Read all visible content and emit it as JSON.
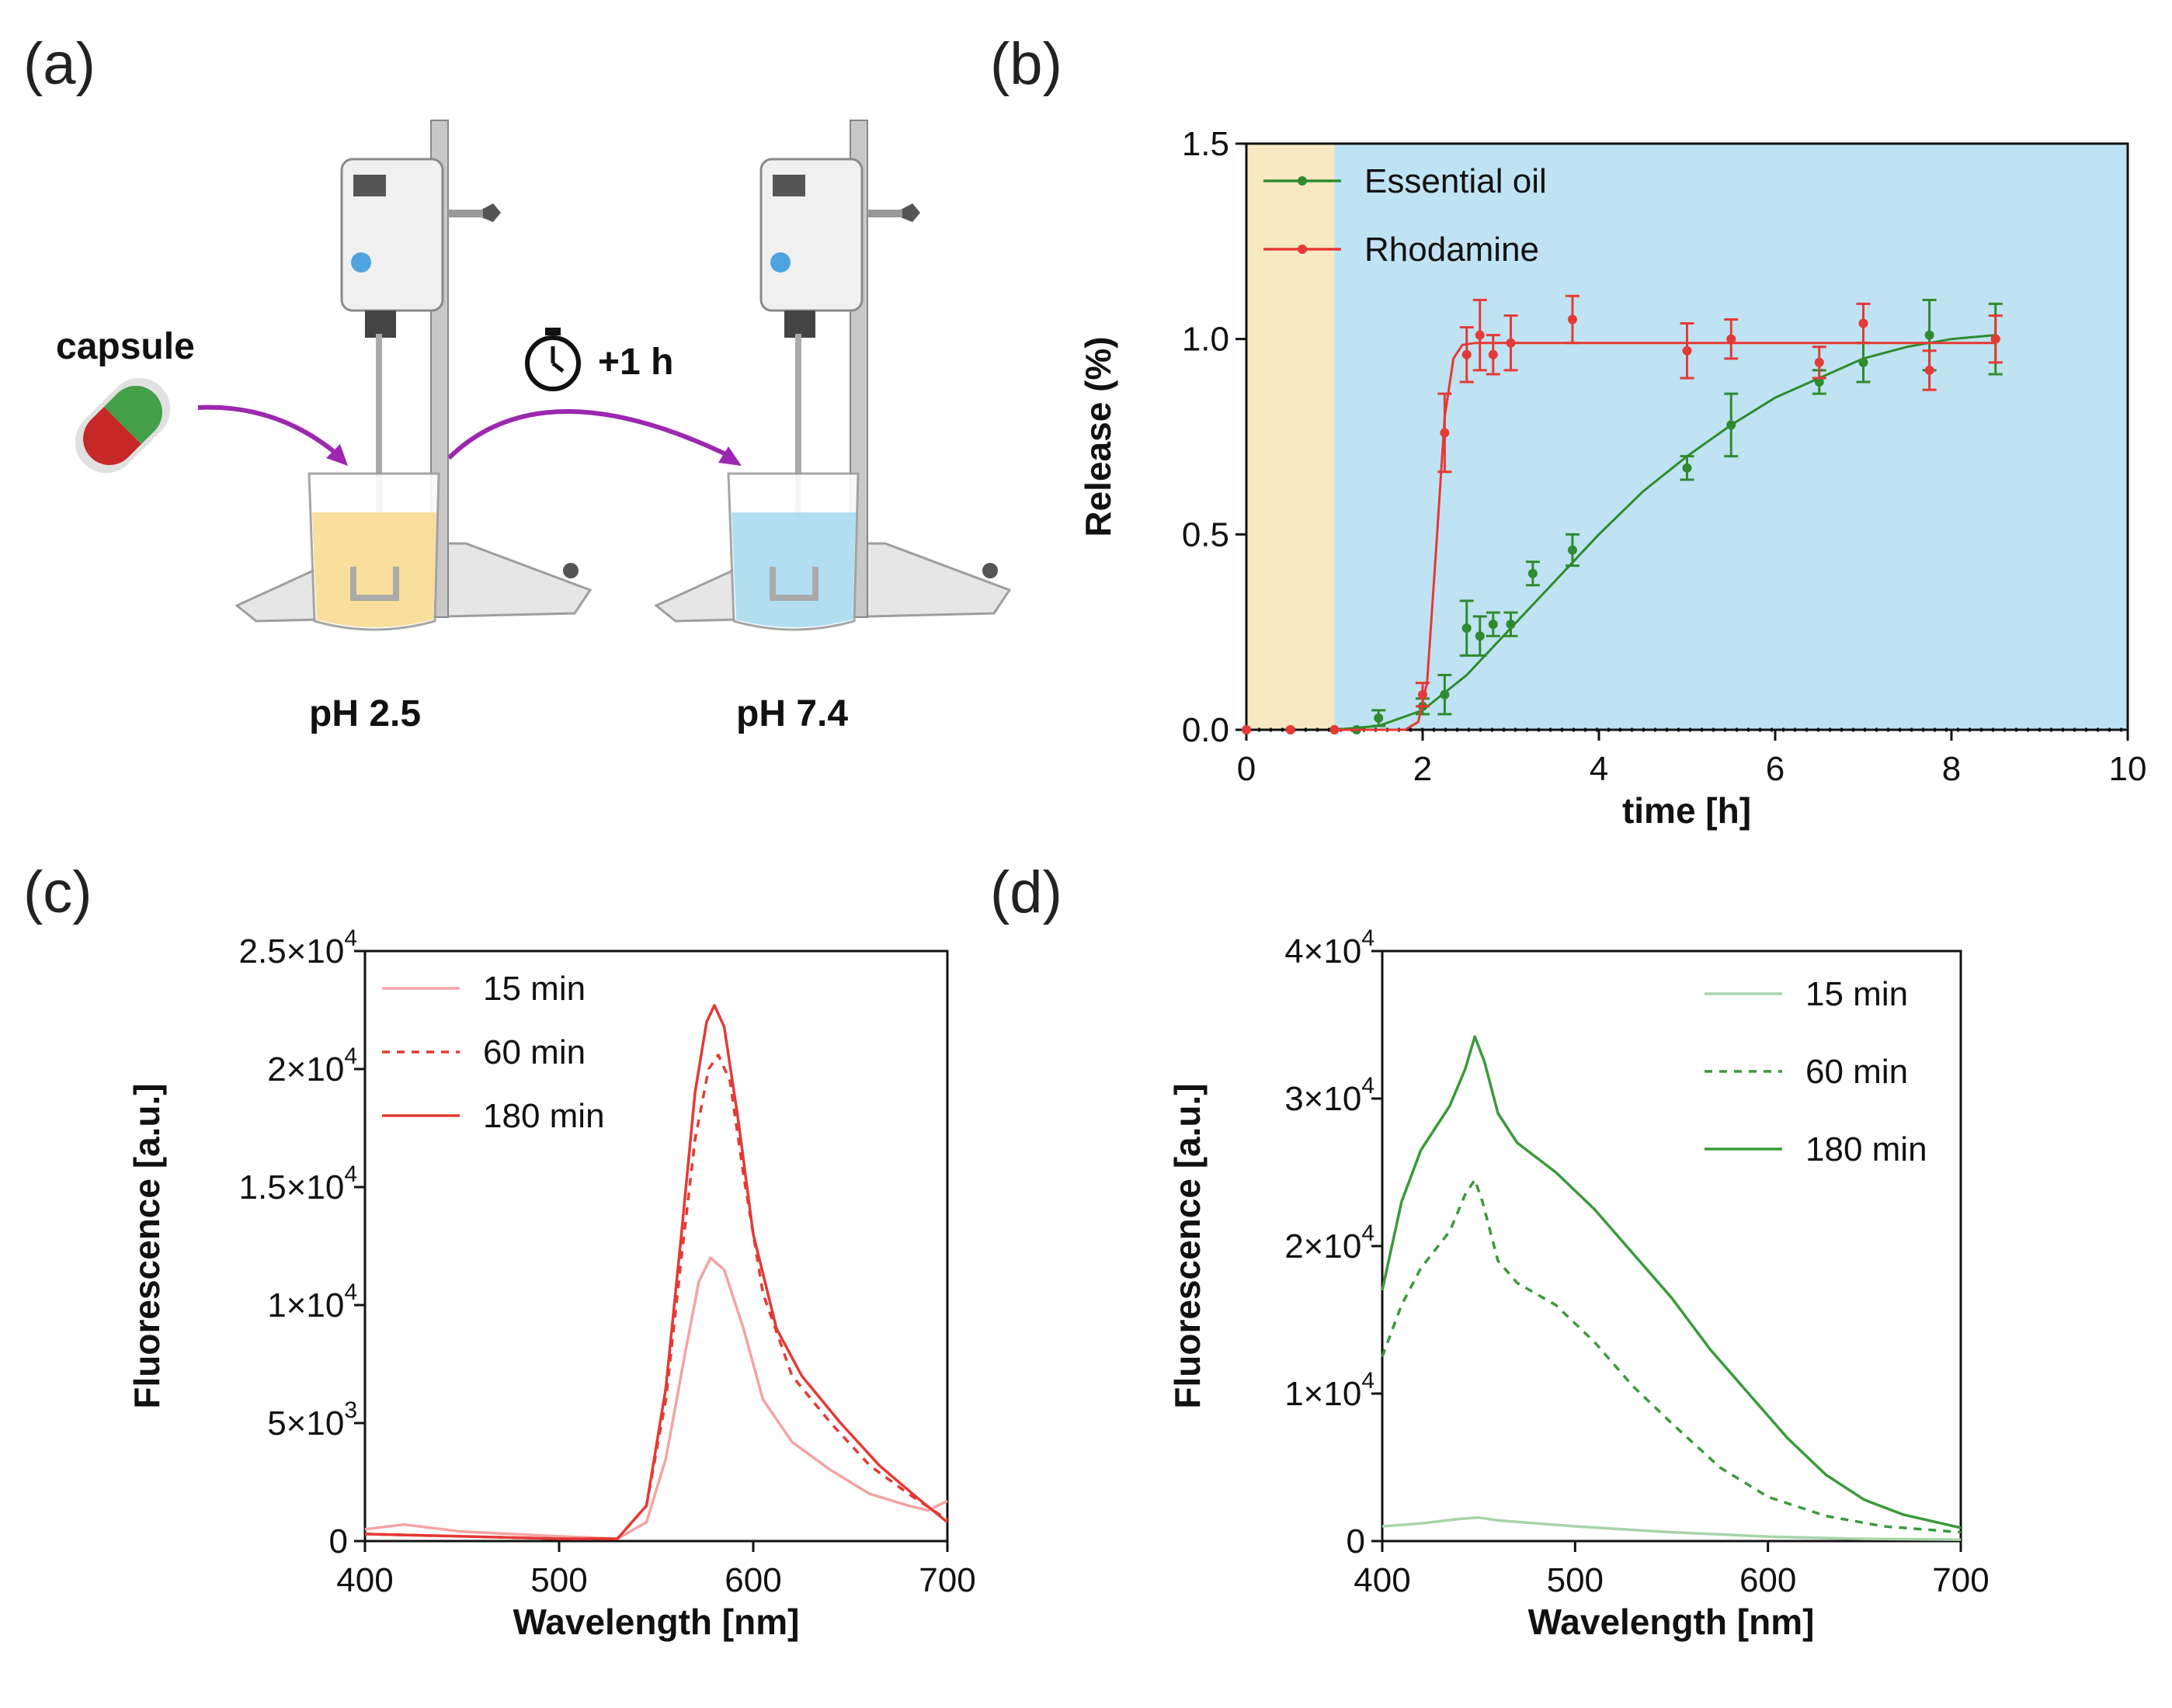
{
  "panels": {
    "a": {
      "label": "(a)",
      "capsule": "capsule",
      "timer": "+1 h",
      "ph_left": "pH 2.5",
      "ph_right": "pH 7.4"
    },
    "b": {
      "label": "(b)"
    },
    "c": {
      "label": "(c)"
    },
    "d": {
      "label": "(d)"
    }
  },
  "chart_data": [
    {
      "id": "b",
      "type": "line",
      "xlabel": "time [h]",
      "ylabel": "Release (%)",
      "xlim": [
        0,
        10
      ],
      "ylim": [
        0,
        1.5
      ],
      "xticks": [
        "0",
        "2",
        "4",
        "6",
        "8",
        "10"
      ],
      "yticks": [
        "0.0",
        "0.5",
        "1.0",
        "1.5"
      ],
      "background_regions": [
        {
          "from": 0,
          "to": 1,
          "color": "#f8e9c3"
        },
        {
          "from": 1,
          "to": 10,
          "color": "#bfe3f2"
        }
      ],
      "legend_position": "top-left",
      "series": [
        {
          "name": "Essential oil",
          "color": "#2e8b2e",
          "points": [
            [
              0,
              0
            ],
            [
              0.5,
              0
            ],
            [
              1,
              0
            ],
            [
              1.25,
              0
            ],
            [
              1.5,
              0.03
            ],
            [
              2,
              0.06
            ],
            [
              2.25,
              0.09
            ],
            [
              2.5,
              0.26
            ],
            [
              2.65,
              0.24
            ],
            [
              2.8,
              0.27
            ],
            [
              3,
              0.27
            ],
            [
              3.25,
              0.4
            ],
            [
              3.7,
              0.46
            ],
            [
              5,
              0.67
            ],
            [
              5.5,
              0.78
            ],
            [
              6.5,
              0.89
            ],
            [
              7,
              0.94
            ],
            [
              7.75,
              1.01
            ],
            [
              8.5,
              1.0
            ]
          ],
          "errors": [
            0,
            0,
            0,
            0,
            0.02,
            0.02,
            0.05,
            0.07,
            0.05,
            0.03,
            0.03,
            0.03,
            0.04,
            0.03,
            0.08,
            0.03,
            0.05,
            0.09,
            0.09
          ],
          "fit": [
            [
              1,
              0
            ],
            [
              1.5,
              0.01
            ],
            [
              2,
              0.05
            ],
            [
              2.5,
              0.14
            ],
            [
              3,
              0.26
            ],
            [
              3.5,
              0.38
            ],
            [
              4,
              0.5
            ],
            [
              4.5,
              0.61
            ],
            [
              5,
              0.7
            ],
            [
              5.5,
              0.78
            ],
            [
              6,
              0.85
            ],
            [
              6.5,
              0.9
            ],
            [
              7,
              0.95
            ],
            [
              7.5,
              0.98
            ],
            [
              8,
              1.0
            ],
            [
              8.5,
              1.01
            ]
          ]
        },
        {
          "name": "Rhodamine",
          "color": "#e53935",
          "points": [
            [
              0,
              0
            ],
            [
              0.5,
              0
            ],
            [
              1,
              0
            ],
            [
              2,
              0.09
            ],
            [
              2.25,
              0.76
            ],
            [
              2.5,
              0.96
            ],
            [
              2.65,
              1.01
            ],
            [
              2.8,
              0.96
            ],
            [
              3,
              0.99
            ],
            [
              3.7,
              1.05
            ],
            [
              5,
              0.97
            ],
            [
              5.5,
              1.0
            ],
            [
              6.5,
              0.94
            ],
            [
              7,
              1.04
            ],
            [
              7.75,
              0.92
            ],
            [
              8.5,
              1.0
            ]
          ],
          "errors": [
            0,
            0,
            0,
            0.03,
            0.1,
            0.07,
            0.09,
            0.05,
            0.07,
            0.06,
            0.07,
            0.05,
            0.04,
            0.05,
            0.05,
            0.06
          ],
          "fit": [
            [
              1,
              0
            ],
            [
              1.8,
              0
            ],
            [
              1.95,
              0.02
            ],
            [
              2.05,
              0.12
            ],
            [
              2.15,
              0.45
            ],
            [
              2.25,
              0.8
            ],
            [
              2.35,
              0.95
            ],
            [
              2.45,
              0.985
            ],
            [
              2.6,
              0.99
            ],
            [
              8.5,
              0.99
            ]
          ]
        }
      ]
    },
    {
      "id": "c",
      "type": "line",
      "xlabel": "Wavelength [nm]",
      "ylabel": "Fluorescence [a.u.]",
      "xlim": [
        400,
        700
      ],
      "ylim": [
        0,
        25000
      ],
      "xticks": [
        "400",
        "500",
        "600",
        "700"
      ],
      "yticks": [
        {
          "value": 0,
          "base": "0",
          "exp": ""
        },
        {
          "value": 5000,
          "base": "5×10",
          "exp": "3"
        },
        {
          "value": 10000,
          "base": "1×10",
          "exp": "4"
        },
        {
          "value": 15000,
          "base": "1.5×10",
          "exp": "4"
        },
        {
          "value": 20000,
          "base": "2×10",
          "exp": "4"
        },
        {
          "value": 25000,
          "base": "2.5×10",
          "exp": "4"
        }
      ],
      "legend_position": "top-left",
      "series": [
        {
          "name": "15 min",
          "color": "#f4a3a3",
          "dash": "",
          "points": [
            [
              400,
              500
            ],
            [
              420,
              700
            ],
            [
              450,
              400
            ],
            [
              500,
              200
            ],
            [
              530,
              100
            ],
            [
              545,
              800
            ],
            [
              555,
              3500
            ],
            [
              565,
              8000
            ],
            [
              572,
              11000
            ],
            [
              578,
              12000
            ],
            [
              585,
              11500
            ],
            [
              595,
              9000
            ],
            [
              605,
              6000
            ],
            [
              620,
              4200
            ],
            [
              640,
              3000
            ],
            [
              660,
              2000
            ],
            [
              680,
              1500
            ],
            [
              690,
              1300
            ],
            [
              700,
              1700
            ]
          ]
        },
        {
          "name": "60 min",
          "color": "#e53935",
          "dash": "10,9",
          "points": [
            [
              400,
              300
            ],
            [
              450,
              200
            ],
            [
              500,
              100
            ],
            [
              530,
              100
            ],
            [
              545,
              1500
            ],
            [
              555,
              6000
            ],
            [
              563,
              12000
            ],
            [
              570,
              17000
            ],
            [
              577,
              20000
            ],
            [
              582,
              20600
            ],
            [
              588,
              19500
            ],
            [
              595,
              15500
            ],
            [
              605,
              10500
            ],
            [
              620,
              7000
            ],
            [
              640,
              5000
            ],
            [
              660,
              3200
            ],
            [
              680,
              2000
            ],
            [
              700,
              900
            ]
          ]
        },
        {
          "name": "180 min",
          "color": "#e53935",
          "dash": "",
          "points": [
            [
              400,
              300
            ],
            [
              450,
              200
            ],
            [
              500,
              100
            ],
            [
              530,
              100
            ],
            [
              545,
              1500
            ],
            [
              555,
              6500
            ],
            [
              563,
              13000
            ],
            [
              570,
              19000
            ],
            [
              576,
              22000
            ],
            [
              580,
              22700
            ],
            [
              585,
              21800
            ],
            [
              592,
              18000
            ],
            [
              600,
              13000
            ],
            [
              612,
              9000
            ],
            [
              625,
              7000
            ],
            [
              645,
              5000
            ],
            [
              665,
              3200
            ],
            [
              685,
              1800
            ],
            [
              700,
              800
            ]
          ]
        }
      ]
    },
    {
      "id": "d",
      "type": "line",
      "xlabel": "Wavelength [nm]",
      "ylabel": "Fluorescence [a.u.]",
      "xlim": [
        400,
        700
      ],
      "ylim": [
        0,
        40000
      ],
      "xticks": [
        "400",
        "500",
        "600",
        "700"
      ],
      "yticks": [
        {
          "value": 0,
          "base": "0",
          "exp": ""
        },
        {
          "value": 10000,
          "base": "1×10",
          "exp": "4"
        },
        {
          "value": 20000,
          "base": "2×10",
          "exp": "4"
        },
        {
          "value": 30000,
          "base": "3×10",
          "exp": "4"
        },
        {
          "value": 40000,
          "base": "4×10",
          "exp": "4"
        }
      ],
      "legend_position": "top-right",
      "series": [
        {
          "name": "15 min",
          "color": "#a5d6a7",
          "dash": "",
          "points": [
            [
              400,
              1000
            ],
            [
              420,
              1200
            ],
            [
              440,
              1500
            ],
            [
              450,
              1600
            ],
            [
              460,
              1400
            ],
            [
              500,
              1000
            ],
            [
              550,
              600
            ],
            [
              600,
              300
            ],
            [
              650,
              150
            ],
            [
              700,
              100
            ]
          ]
        },
        {
          "name": "60 min",
          "color": "#3a9a3a",
          "dash": "10,9",
          "points": [
            [
              400,
              12500
            ],
            [
              410,
              16000
            ],
            [
              420,
              18500
            ],
            [
              435,
              21000
            ],
            [
              443,
              23500
            ],
            [
              448,
              24500
            ],
            [
              452,
              23000
            ],
            [
              460,
              19000
            ],
            [
              470,
              17500
            ],
            [
              490,
              16000
            ],
            [
              510,
              13500
            ],
            [
              530,
              10500
            ],
            [
              550,
              8000
            ],
            [
              575,
              5000
            ],
            [
              600,
              3000
            ],
            [
              630,
              1700
            ],
            [
              660,
              1000
            ],
            [
              700,
              600
            ]
          ]
        },
        {
          "name": "180 min",
          "color": "#3a9a3a",
          "dash": "",
          "points": [
            [
              400,
              17000
            ],
            [
              410,
              23000
            ],
            [
              420,
              26500
            ],
            [
              435,
              29500
            ],
            [
              443,
              32000
            ],
            [
              448,
              34200
            ],
            [
              453,
              32500
            ],
            [
              460,
              29000
            ],
            [
              470,
              27000
            ],
            [
              490,
              25000
            ],
            [
              510,
              22500
            ],
            [
              530,
              19500
            ],
            [
              550,
              16500
            ],
            [
              570,
              13000
            ],
            [
              590,
              10000
            ],
            [
              610,
              7000
            ],
            [
              630,
              4500
            ],
            [
              650,
              2800
            ],
            [
              670,
              1800
            ],
            [
              690,
              1200
            ],
            [
              700,
              900
            ]
          ]
        }
      ]
    }
  ]
}
